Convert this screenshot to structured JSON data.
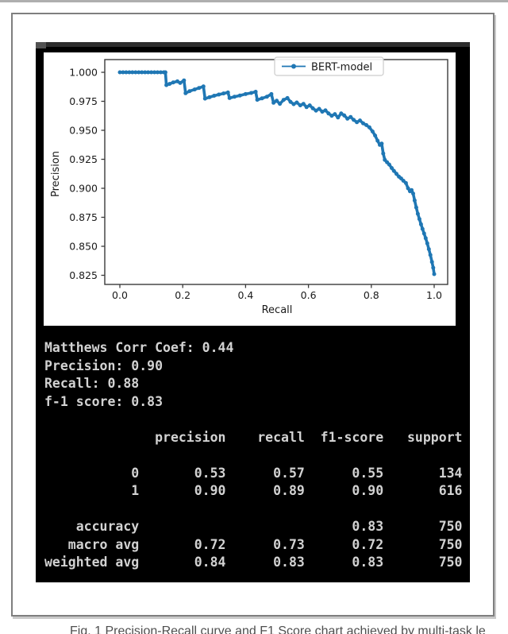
{
  "colors": {
    "curve": "#1f77b4",
    "panel_background": "#000000",
    "console_text": "#d2d2d2",
    "box_border": "#7f7f7f",
    "axis_text": "#1a1a1a"
  },
  "chart_data": {
    "type": "line",
    "title": "",
    "xlabel": "Recall",
    "ylabel": "Precision",
    "xlim": [
      -0.048,
      1.043
    ],
    "ylim": [
      0.817,
      1.011
    ],
    "xticks": [
      0.0,
      0.2,
      0.4,
      0.6,
      0.8,
      1.0
    ],
    "yticks": [
      1.0,
      0.975,
      0.95,
      0.925,
      0.9,
      0.875,
      0.85,
      0.825
    ],
    "grid": false,
    "legend": {
      "position": "upper right",
      "entries": [
        "BERT-model"
      ]
    },
    "series": [
      {
        "name": "BERT-model",
        "color": "#1f77b4",
        "points": [
          [
            0.0,
            1.0
          ],
          [
            0.01,
            1.0
          ],
          [
            0.02,
            1.0
          ],
          [
            0.03,
            1.0
          ],
          [
            0.04,
            1.0
          ],
          [
            0.05,
            1.0
          ],
          [
            0.06,
            1.0
          ],
          [
            0.07,
            1.0
          ],
          [
            0.08,
            1.0
          ],
          [
            0.09,
            1.0
          ],
          [
            0.1,
            1.0
          ],
          [
            0.11,
            1.0
          ],
          [
            0.12,
            1.0
          ],
          [
            0.13,
            1.0
          ],
          [
            0.14,
            1.0
          ],
          [
            0.145,
            1.0
          ],
          [
            0.148,
            0.989
          ],
          [
            0.158,
            0.99
          ],
          [
            0.17,
            0.9913
          ],
          [
            0.183,
            0.9922
          ],
          [
            0.192,
            0.9908
          ],
          [
            0.204,
            0.993
          ],
          [
            0.209,
            0.982
          ],
          [
            0.222,
            0.9838
          ],
          [
            0.238,
            0.9852
          ],
          [
            0.252,
            0.9865
          ],
          [
            0.266,
            0.9878
          ],
          [
            0.271,
            0.9773
          ],
          [
            0.285,
            0.9785
          ],
          [
            0.3,
            0.9798
          ],
          [
            0.315,
            0.9808
          ],
          [
            0.33,
            0.9818
          ],
          [
            0.344,
            0.9826
          ],
          [
            0.349,
            0.9778
          ],
          [
            0.365,
            0.979
          ],
          [
            0.382,
            0.98
          ],
          [
            0.4,
            0.9812
          ],
          [
            0.418,
            0.9822
          ],
          [
            0.432,
            0.9832
          ],
          [
            0.437,
            0.9763
          ],
          [
            0.452,
            0.9775
          ],
          [
            0.468,
            0.979
          ],
          [
            0.482,
            0.9812
          ],
          [
            0.489,
            0.9738
          ],
          [
            0.499,
            0.9755
          ],
          [
            0.509,
            0.9728
          ],
          [
            0.521,
            0.9762
          ],
          [
            0.533,
            0.9778
          ],
          [
            0.543,
            0.9745
          ],
          [
            0.553,
            0.9725
          ],
          [
            0.563,
            0.974
          ],
          [
            0.574,
            0.9715
          ],
          [
            0.584,
            0.9728
          ],
          [
            0.594,
            0.97
          ],
          [
            0.604,
            0.9715
          ],
          [
            0.614,
            0.969
          ],
          [
            0.624,
            0.967
          ],
          [
            0.634,
            0.9685
          ],
          [
            0.644,
            0.966
          ],
          [
            0.654,
            0.9672
          ],
          [
            0.664,
            0.9645
          ],
          [
            0.674,
            0.9625
          ],
          [
            0.684,
            0.964
          ],
          [
            0.694,
            0.961
          ],
          [
            0.704,
            0.9645
          ],
          [
            0.714,
            0.9628
          ],
          [
            0.724,
            0.96
          ],
          [
            0.734,
            0.9615
          ],
          [
            0.744,
            0.959
          ],
          [
            0.754,
            0.957
          ],
          [
            0.764,
            0.9585
          ],
          [
            0.774,
            0.956
          ],
          [
            0.784,
            0.9545
          ],
          [
            0.794,
            0.9525
          ],
          [
            0.804,
            0.949
          ],
          [
            0.812,
            0.9455
          ],
          [
            0.82,
            0.941
          ],
          [
            0.827,
            0.9375
          ],
          [
            0.833,
            0.9385
          ],
          [
            0.838,
            0.93
          ],
          [
            0.843,
            0.9245
          ],
          [
            0.85,
            0.9225
          ],
          [
            0.857,
            0.9205
          ],
          [
            0.865,
            0.9175
          ],
          [
            0.872,
            0.915
          ],
          [
            0.88,
            0.9125
          ],
          [
            0.888,
            0.91
          ],
          [
            0.895,
            0.9085
          ],
          [
            0.902,
            0.9065
          ],
          [
            0.91,
            0.9045
          ],
          [
            0.917,
            0.9
          ],
          [
            0.923,
            0.8975
          ],
          [
            0.928,
            0.8985
          ],
          [
            0.933,
            0.8955
          ],
          [
            0.938,
            0.8895
          ],
          [
            0.943,
            0.8835
          ],
          [
            0.948,
            0.878
          ],
          [
            0.953,
            0.8735
          ],
          [
            0.958,
            0.869
          ],
          [
            0.963,
            0.865
          ],
          [
            0.968,
            0.861
          ],
          [
            0.973,
            0.857
          ],
          [
            0.978,
            0.8525
          ],
          [
            0.983,
            0.8475
          ],
          [
            0.988,
            0.8425
          ],
          [
            0.993,
            0.8365
          ],
          [
            0.997,
            0.8315
          ],
          [
            1.0,
            0.826
          ]
        ]
      }
    ]
  },
  "console": {
    "lines": [
      "Matthews Corr Coef: 0.44",
      "Precision: 0.90",
      "Recall: 0.88",
      "f-1 score: 0.83",
      "",
      "              precision    recall  f1-score   support",
      "",
      "           0       0.53      0.57      0.55       134",
      "           1       0.90      0.89      0.90       616",
      "",
      "    accuracy                           0.83       750",
      "   macro avg       0.72      0.73      0.72       750",
      "weighted avg       0.84      0.83      0.83       750"
    ],
    "metrics": {
      "matthews_corr_coef": 0.44,
      "precision": 0.9,
      "recall": 0.88,
      "f1_score": 0.83
    },
    "report_table": {
      "columns": [
        "precision",
        "recall",
        "f1-score",
        "support"
      ],
      "rows": [
        {
          "label": "0",
          "precision": 0.53,
          "recall": 0.57,
          "f1-score": 0.55,
          "support": 134
        },
        {
          "label": "1",
          "precision": 0.9,
          "recall": 0.89,
          "f1-score": 0.9,
          "support": 616
        },
        {
          "label": "accuracy",
          "f1-score": 0.83,
          "support": 750
        },
        {
          "label": "macro avg",
          "precision": 0.72,
          "recall": 0.73,
          "f1-score": 0.72,
          "support": 750
        },
        {
          "label": "weighted avg",
          "precision": 0.84,
          "recall": 0.83,
          "f1-score": 0.83,
          "support": 750
        }
      ]
    }
  },
  "caption": {
    "text": "Fig. 1 Precision-Recall curve and F1 Score chart achieved by multi-task le"
  }
}
